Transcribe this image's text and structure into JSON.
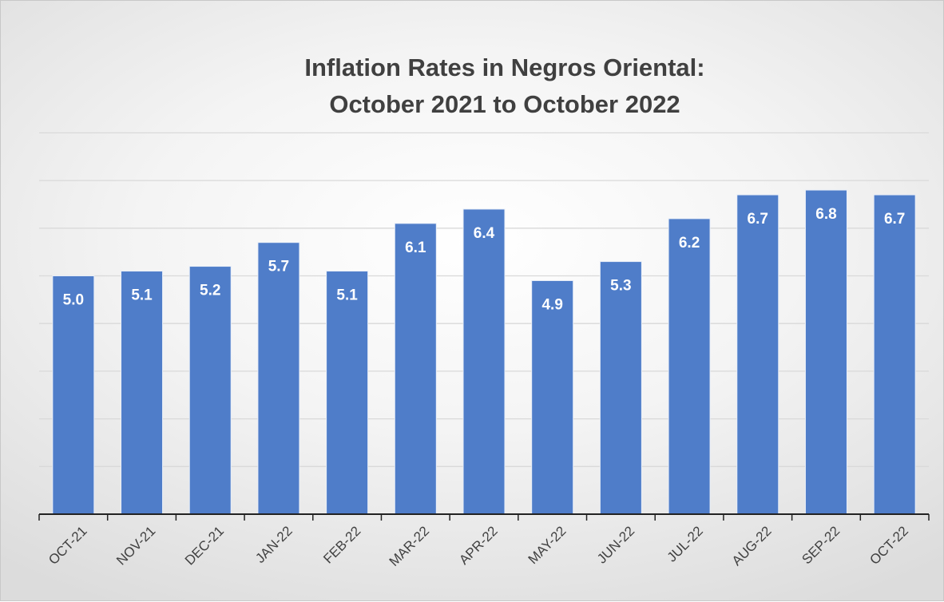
{
  "chart_data": {
    "type": "bar",
    "title_line1": "Inflation Rates in Negros Oriental:",
    "title_line2": "October 2021 to October 2022",
    "categories": [
      "OCT-21",
      "NOV-21",
      "DEC-21",
      "JAN-22",
      "FEB-22",
      "MAR-22",
      "APR-22",
      "MAY-22",
      "JUN-22",
      "JUL-22",
      "AUG-22",
      "SEP-22",
      "OCT-22"
    ],
    "values": [
      5.0,
      5.1,
      5.2,
      5.7,
      5.1,
      6.1,
      6.4,
      4.9,
      5.3,
      6.2,
      6.7,
      6.8,
      6.7
    ],
    "data_labels": [
      "5.0",
      "5.1",
      "5.2",
      "5.7",
      "5.1",
      "6.1",
      "6.4",
      "4.9",
      "5.3",
      "6.2",
      "6.7",
      "6.8",
      "6.7"
    ],
    "ylim": [
      0,
      8
    ],
    "y_tick_values": [
      0,
      1,
      2,
      3,
      4,
      5,
      6,
      7,
      8
    ],
    "y_tick_labels_visible": false,
    "grid": true,
    "legend": "none",
    "bar_color": "#4f7dc9",
    "label_color": "#ffffff"
  }
}
